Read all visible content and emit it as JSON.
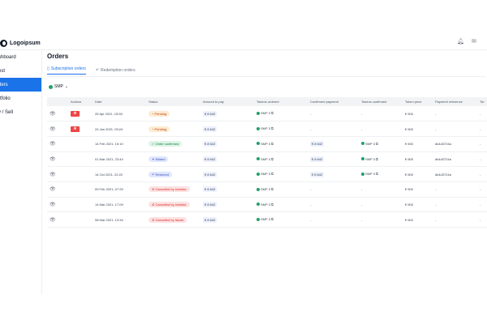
{
  "brand": {
    "name": "Logoipsum"
  },
  "sidebar": {
    "items": [
      {
        "label": "shboard",
        "active": false
      },
      {
        "label": "est",
        "active": false
      },
      {
        "label": "ders",
        "active": true
      },
      {
        "label": "rtfolio",
        "active": false
      },
      {
        "label": "y / Sell",
        "active": false
      }
    ]
  },
  "page": {
    "title": "Orders",
    "tabs": [
      {
        "label": "Subscription orders",
        "active": true
      },
      {
        "label": "Redemption orders",
        "active": false
      }
    ],
    "filter_token": "SMP"
  },
  "table": {
    "headers": [
      "",
      "Actions",
      "Date",
      "Status",
      "Amount to pay",
      "Tokens ordered",
      "Confirmed payment",
      "Tokens confirmed",
      "Token price",
      "Payment reference",
      "Tot"
    ],
    "rows": [
      {
        "cancel": true,
        "date": "25 Apr 2021, 15:50",
        "status": "Pending",
        "status_type": "pending",
        "amount": "€ 8 642",
        "tokens_ordered": "SMP 3",
        "confirmed_payment": "-",
        "tokens_confirmed": "-",
        "token_price": "€ 500",
        "payment_ref": "-",
        "total": "-"
      },
      {
        "cancel": true,
        "date": "24 Jan 2021, 09:24",
        "status": "Pending",
        "status_type": "pending",
        "amount": "€ 8 642",
        "tokens_ordered": "SMP 3",
        "confirmed_payment": "-",
        "tokens_confirmed": "-",
        "token_price": "€ 500",
        "payment_ref": "-",
        "total": "-"
      },
      {
        "cancel": false,
        "date": "14 Feb 2021, 15:10",
        "status": "Order confirmed",
        "status_type": "confirmed",
        "amount": "€ 8 642",
        "tokens_ordered": "SMP 3",
        "confirmed_payment": "€ 8 642",
        "tokens_confirmed": "SMP 3",
        "token_price": "€ 500",
        "payment_ref": "dk4d3724a",
        "total": "-"
      },
      {
        "cancel": false,
        "date": "01 Mar 2021, 23:44",
        "status": "Minted",
        "status_type": "minted",
        "amount": "€ 8 642",
        "tokens_ordered": "SMP 3",
        "confirmed_payment": "€ 8 642",
        "tokens_confirmed": "SMP 3",
        "token_price": "€ 500",
        "payment_ref": "dk4d3724a",
        "total": "-"
      },
      {
        "cancel": false,
        "date": "14 Oct 2021, 22:22",
        "status": "Returned",
        "status_type": "returned",
        "amount": "€ 8 642",
        "tokens_ordered": "SMP 3",
        "confirmed_payment": "€ 8 642",
        "tokens_confirmed": "SMP 3",
        "token_price": "€ 500",
        "payment_ref": "dk4d3724a",
        "total": "-"
      },
      {
        "cancel": false,
        "date": "09 Feb 2021, 07:25",
        "status": "Cancelled by investor",
        "status_type": "cancelled",
        "amount": "€ 8 642",
        "tokens_ordered": "SMP 3",
        "confirmed_payment": "-",
        "tokens_confirmed": "-",
        "token_price": "€ 500",
        "payment_ref": "-",
        "total": "-"
      },
      {
        "cancel": false,
        "date": "14 Mar 2021, 17:09",
        "status": "Cancelled by investor",
        "status_type": "cancelled",
        "amount": "€ 8 642",
        "tokens_ordered": "SMP 3",
        "confirmed_payment": "-",
        "tokens_confirmed": "-",
        "token_price": "€ 500",
        "payment_ref": "-",
        "total": "-"
      },
      {
        "cancel": false,
        "date": "08 Mar 2021, 13:34",
        "status": "Cancelled by issuer",
        "status_type": "cancelled",
        "amount": "€ 8 642",
        "tokens_ordered": "SMP 3",
        "confirmed_payment": "-",
        "tokens_confirmed": "-",
        "token_price": "€ 500",
        "payment_ref": "-",
        "total": "-"
      }
    ]
  },
  "icons": {
    "eye": "eye-icon",
    "cancel": "close-icon",
    "copy": "copy-icon",
    "bell": "bell-icon",
    "mail": "mail-icon"
  },
  "colors": {
    "accent": "#1a73e8",
    "danger": "#ef4444",
    "token": "#22a06b"
  }
}
